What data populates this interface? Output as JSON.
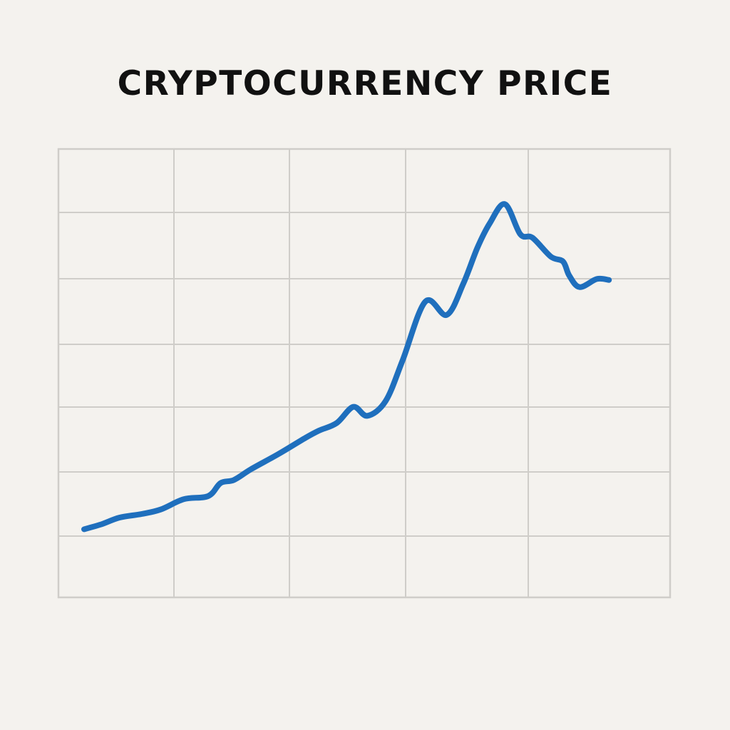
{
  "colors": {
    "background": "#f4f2ee",
    "grid": "#cfcdc9",
    "series_line": "#1f6fbd",
    "title": "#111111"
  },
  "chart_data": {
    "type": "line",
    "title": "CRYPTOCURRENCY PRICE",
    "xlabel": "",
    "ylabel": "",
    "xlim": [
      0,
      100
    ],
    "ylim": [
      0,
      100
    ],
    "grid": true,
    "legend": "none",
    "series": [
      {
        "values": [
          {
            "x": 4.2,
            "y": 15.2
          },
          {
            "x": 7.0,
            "y": 16.3
          },
          {
            "x": 10.0,
            "y": 17.8
          },
          {
            "x": 13.6,
            "y": 18.6
          },
          {
            "x": 16.7,
            "y": 19.6
          },
          {
            "x": 20.5,
            "y": 21.9
          },
          {
            "x": 24.5,
            "y": 22.6
          },
          {
            "x": 26.5,
            "y": 25.5
          },
          {
            "x": 28.7,
            "y": 26.2
          },
          {
            "x": 31.5,
            "y": 28.6
          },
          {
            "x": 36.0,
            "y": 32.0
          },
          {
            "x": 40.4,
            "y": 35.6
          },
          {
            "x": 42.6,
            "y": 37.2
          },
          {
            "x": 45.5,
            "y": 38.9
          },
          {
            "x": 48.2,
            "y": 42.5
          },
          {
            "x": 50.5,
            "y": 40.5
          },
          {
            "x": 53.5,
            "y": 43.8
          },
          {
            "x": 56.3,
            "y": 53.0
          },
          {
            "x": 60.0,
            "y": 66.0
          },
          {
            "x": 63.5,
            "y": 63.0
          },
          {
            "x": 66.2,
            "y": 70.0
          },
          {
            "x": 68.5,
            "y": 78.0
          },
          {
            "x": 70.5,
            "y": 83.4
          },
          {
            "x": 73.0,
            "y": 87.7
          },
          {
            "x": 75.5,
            "y": 81.0
          },
          {
            "x": 77.5,
            "y": 80.2
          },
          {
            "x": 80.5,
            "y": 76.0
          },
          {
            "x": 82.5,
            "y": 74.9
          },
          {
            "x": 83.5,
            "y": 71.8
          },
          {
            "x": 85.2,
            "y": 69.2
          },
          {
            "x": 88.0,
            "y": 71.0
          },
          {
            "x": 90.0,
            "y": 70.8
          }
        ]
      }
    ]
  }
}
